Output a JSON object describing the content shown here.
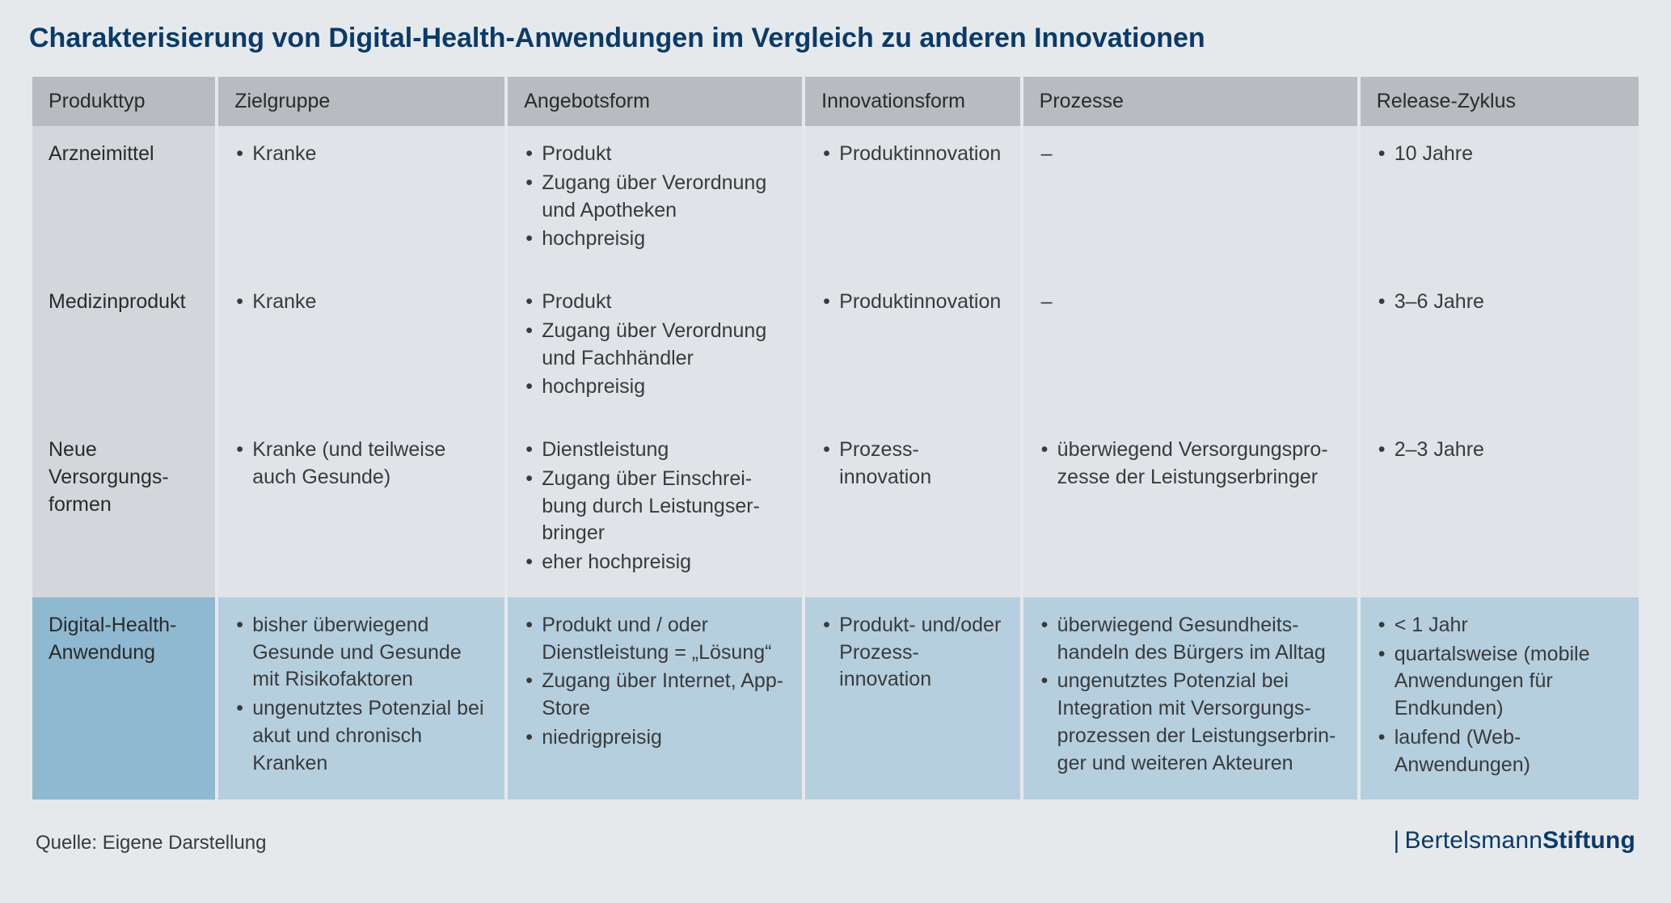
{
  "title": "Charakterisierung von Digital-Health-Anwendungen im Vergleich zu anderen Innovationen",
  "columns": [
    "Produkttyp",
    "Zielgruppe",
    "Angebotsform",
    "Innovationsform",
    "Prozesse",
    "Release-Zyklus"
  ],
  "rows": [
    {
      "highlight": false,
      "label": "Arzneimittel",
      "zielgruppe": [
        "Kranke"
      ],
      "angebotsform": [
        "Produkt",
        "Zugang über Verordnung und Apotheken",
        "hochpreisig"
      ],
      "innovationsform": [
        "Produkt­innovation"
      ],
      "prozesse_dash": "–",
      "release": [
        "10 Jahre"
      ]
    },
    {
      "highlight": false,
      "label": "Medizin­produkt",
      "zielgruppe": [
        "Kranke"
      ],
      "angebotsform": [
        "Produkt",
        "Zugang über Verordnung und Fachhändler",
        "hochpreisig"
      ],
      "innovationsform": [
        "Produkt­innovation"
      ],
      "prozesse_dash": "–",
      "release": [
        "3–6 Jahre"
      ]
    },
    {
      "highlight": false,
      "label": "Neue Versorgungs­formen",
      "zielgruppe": [
        "Kranke (und teilweise auch Gesunde)"
      ],
      "angebotsform": [
        "Dienstleistung",
        "Zugang über Einschrei­bung durch Leistungser­bringer",
        "eher hochpreisig"
      ],
      "innovationsform": [
        "Prozess­innovation"
      ],
      "prozesse": [
        "überwiegend Versorgungspro­zesse der Leistungserbringer"
      ],
      "release": [
        "2–3 Jahre"
      ]
    },
    {
      "highlight": true,
      "label": "Digital-Health-Anwendung",
      "zielgruppe": [
        "bisher überwiegend Gesunde und Gesunde mit Risikofaktoren",
        "ungenutztes Potenzial bei akut und chronisch Kranken"
      ],
      "angebotsform": [
        "Produkt und / oder Dienstleistung = „Lösung“",
        "Zugang über Internet, App-Store",
        "niedrigpreisig"
      ],
      "innovationsform": [
        "Produkt- und/oder Prozess­innovation"
      ],
      "prozesse": [
        "überwiegend Gesundheits­handeln des Bürgers im Alltag",
        "ungenutztes Potenzial bei Integration mit Versorgungs­prozessen der Leistungserbrin­ger und weiteren Akteuren"
      ],
      "release": [
        "< 1 Jahr",
        "quartalsweise (mobile Anwendun­gen für Endkunden)",
        "laufend (Web-Anwendungen)"
      ]
    }
  ],
  "source": "Quelle: Eigene Darstellung",
  "brand": {
    "part1": "Bertelsmann",
    "part2": "Stiftung"
  },
  "colors": {
    "page_bg": "#e6e9ec",
    "title": "#0a3a6a",
    "header_bg": "#b8bcc0",
    "row_bg": "#e0e3e7",
    "rowlabel_bg": "#d3d6da",
    "highlight_bg": "#b5cfdf",
    "highlight_label_bg": "#8fb9d0",
    "text": "#3a3a3a"
  }
}
